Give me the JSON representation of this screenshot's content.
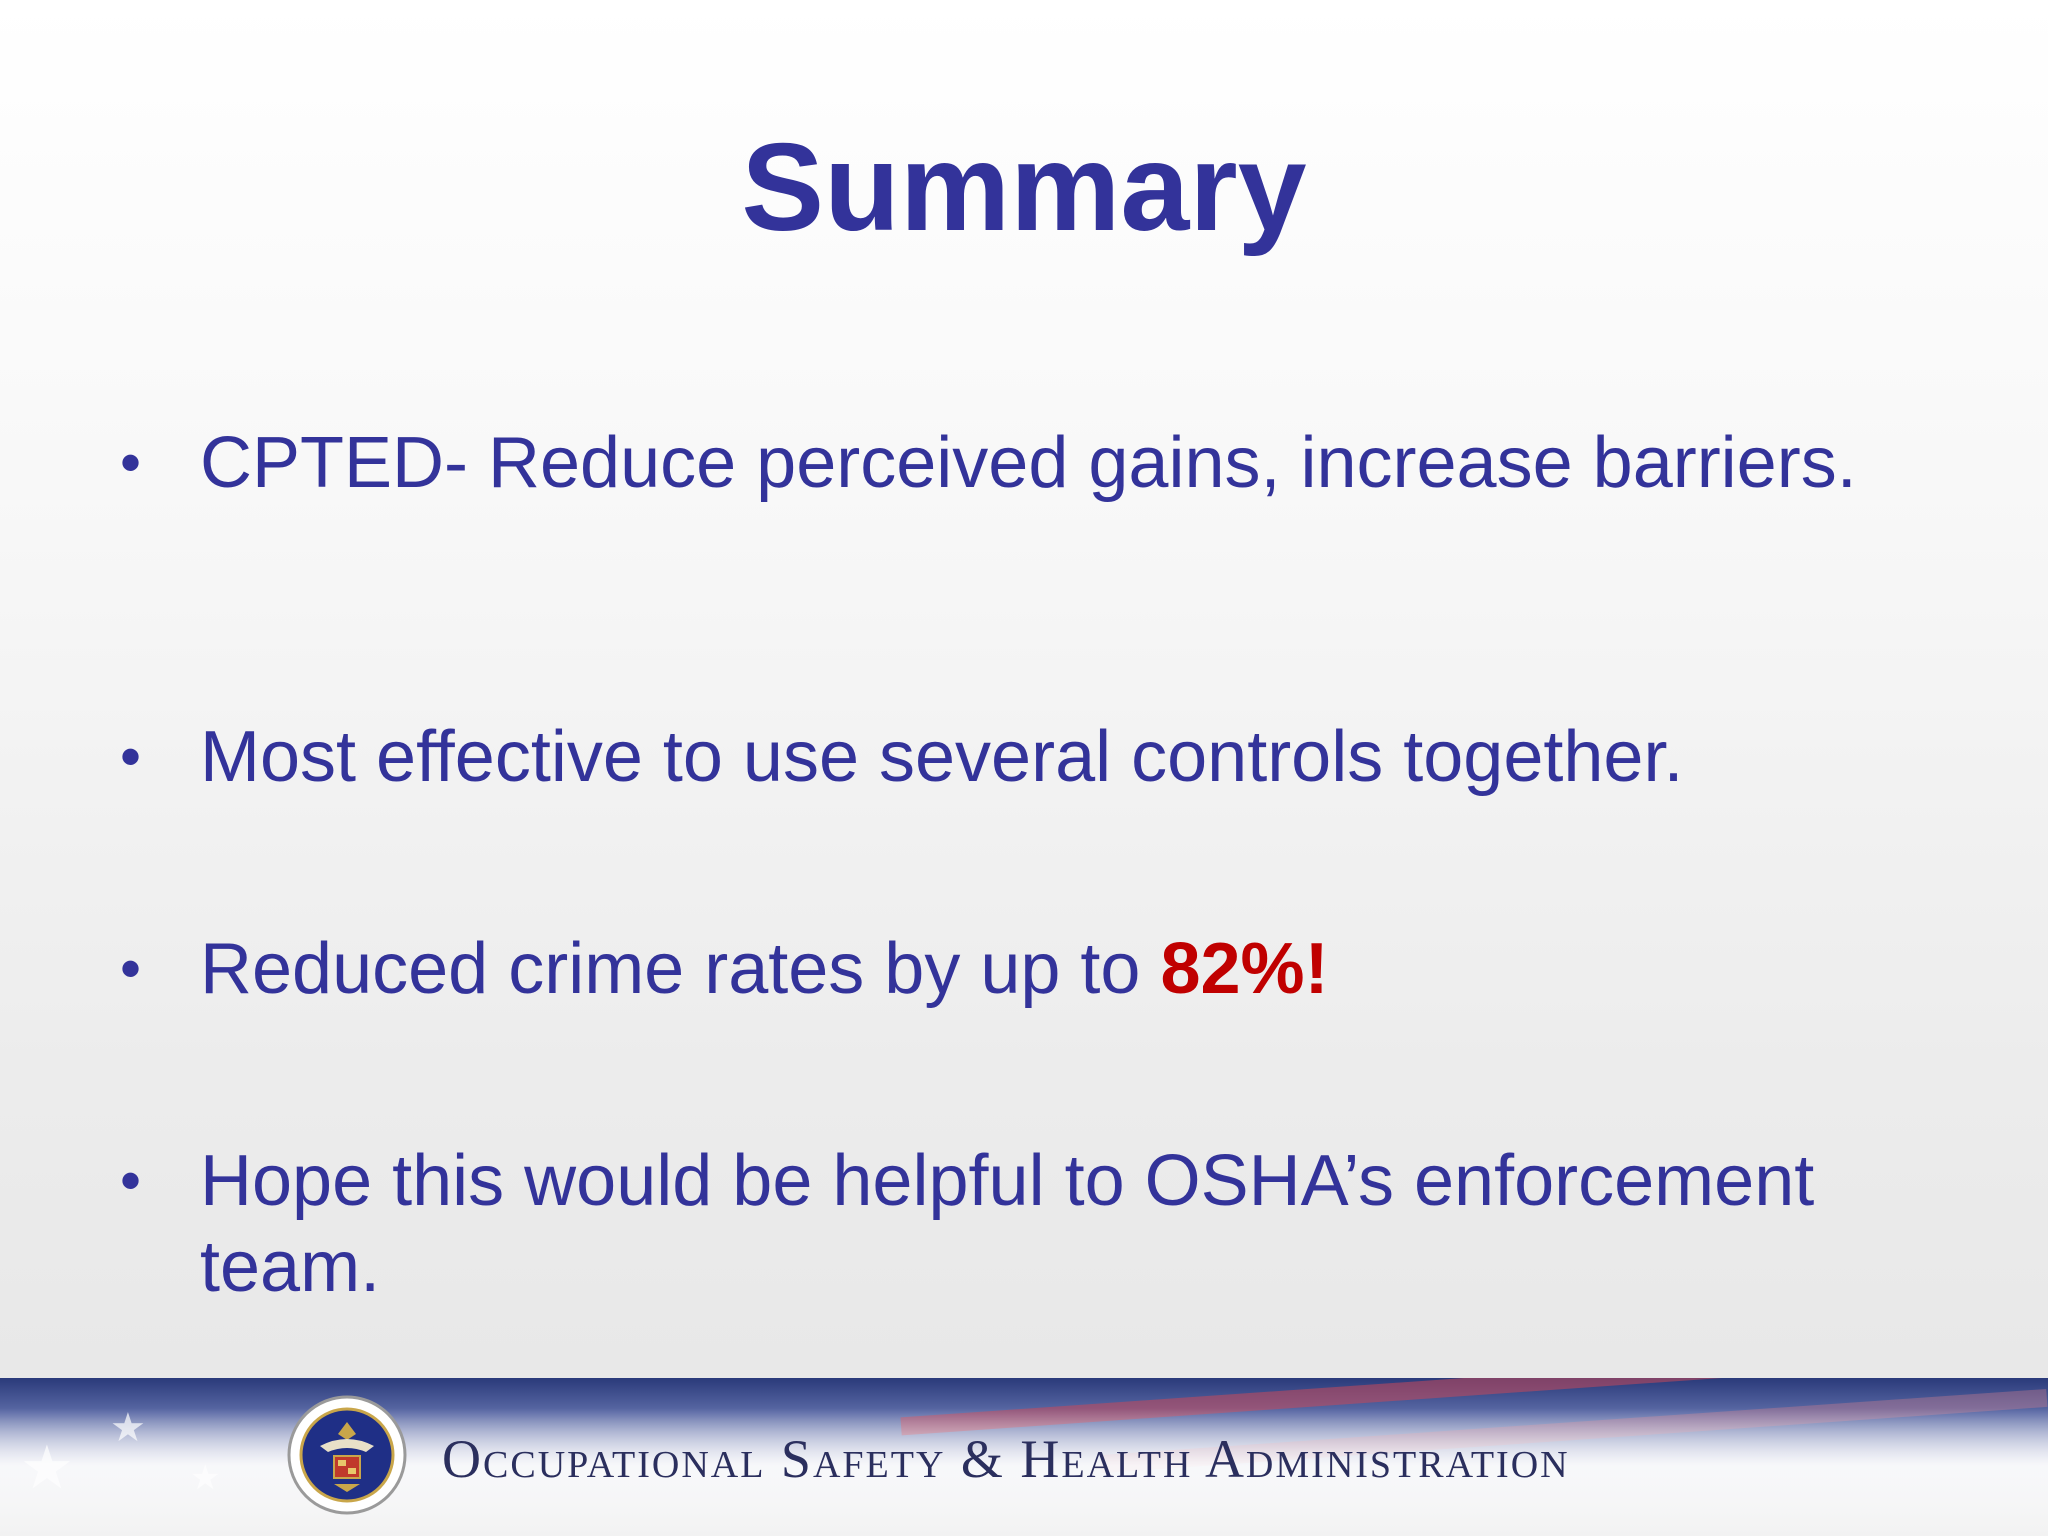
{
  "slide": {
    "title": "Summary",
    "bullets": [
      {
        "text": "CPTED- Reduce perceived gains, increase barriers."
      },
      {
        "text": "Most effective to use several controls together."
      },
      {
        "text": "Reduced crime rates by up to ",
        "highlight": "82%!"
      },
      {
        "text": "Hope this would be helpful to OSHA’s enforcement team."
      }
    ],
    "bullet_glyph": "•"
  },
  "footer": {
    "agency_name": "Occupational Safety & Health Administration",
    "seal_icon": "dol-seal-icon"
  },
  "colors": {
    "text": "#33339a",
    "highlight": "#c00000",
    "footer_text": "#2b2f5e"
  }
}
